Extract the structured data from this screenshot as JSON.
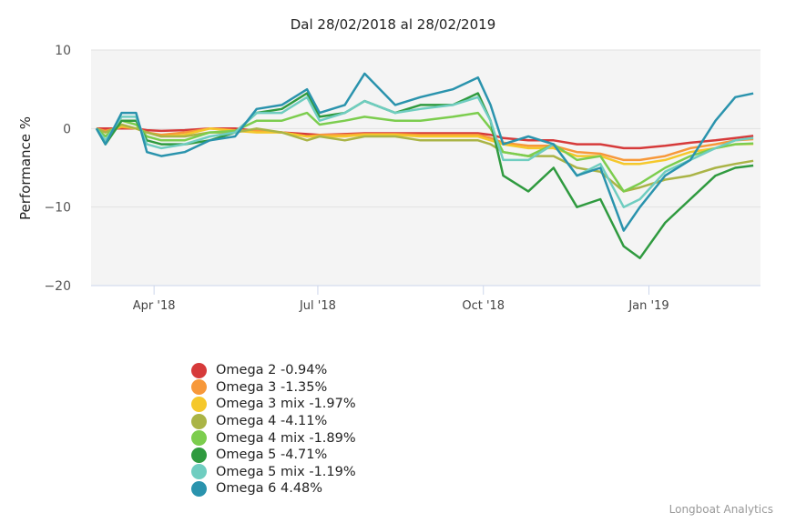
{
  "chart_data": {
    "type": "line",
    "title": "Dal 28/02/2018 al 28/02/2019",
    "ylabel": "Performance %",
    "xlabel": "",
    "ylim": [
      -20,
      10
    ],
    "yticks": [
      10,
      0,
      -10,
      -20
    ],
    "xticks": [
      {
        "date": "2018-04-01",
        "label": "Apr '18"
      },
      {
        "date": "2018-07-01",
        "label": "Jul '18"
      },
      {
        "date": "2018-10-01",
        "label": "Oct '18"
      },
      {
        "date": "2019-01-01",
        "label": "Jan '19"
      }
    ],
    "xlim": [
      "2018-02-25",
      "2019-03-04"
    ],
    "grid": true,
    "legend_position": "bottom-left",
    "dates": [
      "2018-02-28",
      "2018-03-05",
      "2018-03-14",
      "2018-03-22",
      "2018-03-28",
      "2018-04-05",
      "2018-04-18",
      "2018-05-02",
      "2018-05-16",
      "2018-05-28",
      "2018-06-11",
      "2018-06-25",
      "2018-07-02",
      "2018-07-16",
      "2018-07-27",
      "2018-08-13",
      "2018-08-27",
      "2018-09-14",
      "2018-09-28",
      "2018-10-05",
      "2018-10-12",
      "2018-10-26",
      "2018-11-09",
      "2018-11-22",
      "2018-12-05",
      "2018-12-18",
      "2018-12-27",
      "2019-01-10",
      "2019-01-24",
      "2019-02-07",
      "2019-02-18",
      "2019-02-28"
    ],
    "series": [
      {
        "name": "Omega 2",
        "label": "Omega 2 -0.94%",
        "color": "#d63a3a",
        "values": [
          0,
          0,
          0,
          0,
          -0.2,
          -0.3,
          -0.2,
          0,
          0,
          -0.3,
          -0.5,
          -0.7,
          -0.8,
          -0.7,
          -0.6,
          -0.6,
          -0.6,
          -0.6,
          -0.6,
          -0.8,
          -1.2,
          -1.5,
          -1.5,
          -2,
          -2,
          -2.5,
          -2.5,
          -2.2,
          -1.8,
          -1.5,
          -1.2,
          -0.94
        ]
      },
      {
        "name": "Omega 3",
        "label": "Omega 3 -1.35%",
        "color": "#f7983a",
        "values": [
          0,
          -0.3,
          0.2,
          0,
          -0.5,
          -0.8,
          -0.5,
          0,
          -0.2,
          -0.3,
          -0.5,
          -1,
          -0.8,
          -0.8,
          -0.7,
          -0.7,
          -0.8,
          -0.8,
          -0.8,
          -1.2,
          -1.8,
          -2.2,
          -2.2,
          -3,
          -3.2,
          -4,
          -4,
          -3.5,
          -2.5,
          -2,
          -1.5,
          -1.35
        ]
      },
      {
        "name": "Omega 3 mix",
        "label": "Omega 3 mix -1.97%",
        "color": "#f5c82b",
        "values": [
          0,
          -0.5,
          0.3,
          0,
          -0.5,
          -1,
          -0.8,
          0,
          -0.3,
          -0.5,
          -0.5,
          -1,
          -1,
          -1,
          -0.8,
          -0.8,
          -1,
          -1,
          -1,
          -1.5,
          -2,
          -2.5,
          -2.5,
          -3.5,
          -3.5,
          -4.5,
          -4.5,
          -4,
          -3,
          -2.5,
          -2,
          -1.97
        ]
      },
      {
        "name": "Omega 4",
        "label": "Omega 4 -4.11%",
        "color": "#aab446",
        "values": [
          0,
          -0.5,
          0.5,
          0,
          -0.5,
          -1,
          -1,
          -0.5,
          -0.5,
          0,
          -0.5,
          -1.5,
          -1,
          -1.5,
          -1,
          -1,
          -1.5,
          -1.5,
          -1.5,
          -2,
          -3,
          -3.5,
          -3.5,
          -5,
          -5.5,
          -8,
          -7.5,
          -6.5,
          -6,
          -5,
          -4.5,
          -4.11
        ]
      },
      {
        "name": "Omega 4 mix",
        "label": "Omega 4 mix -1.89%",
        "color": "#7ccd4e",
        "values": [
          0,
          -1,
          1,
          0.5,
          -1,
          -1.5,
          -1.5,
          -0.5,
          -0.3,
          1,
          1,
          2,
          0.5,
          1,
          1.5,
          1,
          1,
          1.5,
          2,
          0,
          -3,
          -3.5,
          -2,
          -4,
          -3.5,
          -8,
          -7,
          -5,
          -3.5,
          -2.5,
          -2,
          -1.89
        ]
      },
      {
        "name": "Omega 5",
        "label": "Omega 5 -4.71%",
        "color": "#2f9a3f",
        "values": [
          0,
          -2,
          1,
          1,
          -1.5,
          -2,
          -2,
          -1.5,
          -0.5,
          2,
          2.5,
          4.5,
          1.5,
          2,
          3.5,
          2,
          3,
          3,
          4.5,
          1,
          -6,
          -8,
          -5,
          -10,
          -9,
          -15,
          -16.5,
          -12,
          -9,
          -6,
          -5,
          -4.71
        ]
      },
      {
        "name": "Omega 5 mix",
        "label": "Omega 5 mix -1.19%",
        "color": "#6fcdc0",
        "values": [
          0,
          -1.5,
          1.5,
          1.5,
          -2,
          -2.5,
          -2,
          -1,
          -0.5,
          2,
          2,
          4,
          1,
          2,
          3.5,
          2,
          2.5,
          3,
          4,
          1,
          -4,
          -4,
          -2,
          -6,
          -4.5,
          -10,
          -9,
          -5.5,
          -4,
          -2.5,
          -1.5,
          -1.19
        ]
      },
      {
        "name": "Omega 6",
        "label": "Omega 6 4.48%",
        "color": "#2a93ad",
        "values": [
          0,
          -2,
          2,
          2,
          -3,
          -3.5,
          -3,
          -1.5,
          -1,
          2.5,
          3,
          5,
          2,
          3,
          7,
          3,
          4,
          5,
          6.5,
          3,
          -2,
          -1,
          -2,
          -6,
          -5,
          -13,
          -10,
          -6,
          -4,
          1,
          4,
          4.48
        ]
      }
    ]
  },
  "credit": "Longboat Analytics"
}
